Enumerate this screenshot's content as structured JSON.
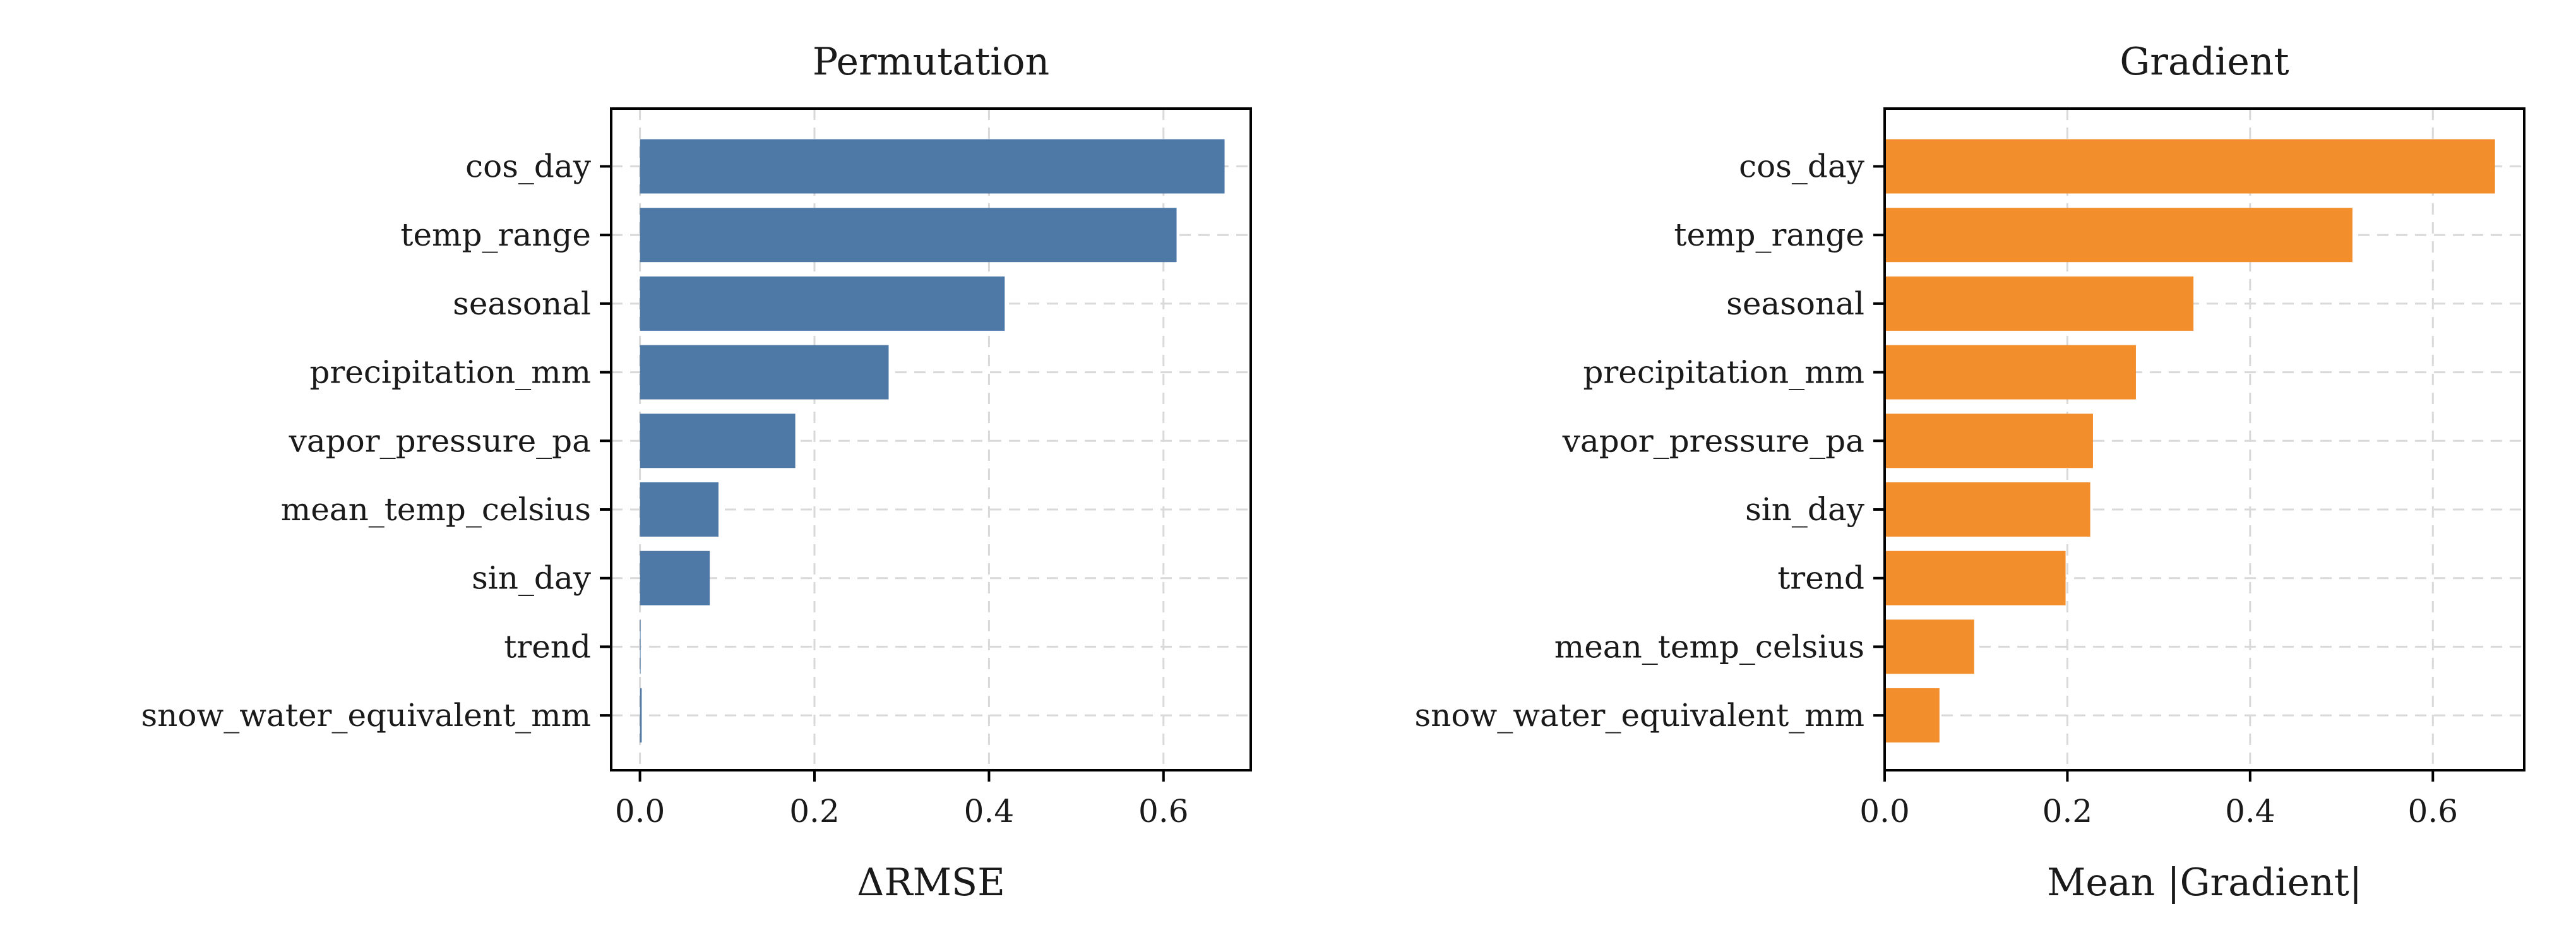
{
  "chart_data": [
    {
      "type": "bar",
      "orientation": "horizontal",
      "title": "Permutation",
      "xlabel": "ΔRMSE",
      "ylabel": "",
      "categories": [
        "cos_day",
        "temp_range",
        "seasonal",
        "precipitation_mm",
        "vapor_pressure_pa",
        "mean_temp_celsius",
        "sin_day",
        "trend",
        "snow_water_equivalent_mm"
      ],
      "values": [
        0.67,
        0.615,
        0.418,
        0.285,
        0.178,
        0.09,
        0.08,
        0.0,
        0.002
      ],
      "xlim": [
        -0.033,
        0.7
      ],
      "xticks": [
        0.0,
        0.2,
        0.4,
        0.6
      ],
      "xtick_labels": [
        "0.0",
        "0.2",
        "0.4",
        "0.6"
      ],
      "grid": true,
      "color": "#4e79a7"
    },
    {
      "type": "bar",
      "orientation": "horizontal",
      "title": "Gradient",
      "xlabel": "Mean |Gradient|",
      "ylabel": "",
      "categories": [
        "cos_day",
        "temp_range",
        "seasonal",
        "precipitation_mm",
        "vapor_pressure_pa",
        "sin_day",
        "trend",
        "mean_temp_celsius",
        "snow_water_equivalent_mm"
      ],
      "values": [
        0.668,
        0.512,
        0.338,
        0.275,
        0.228,
        0.225,
        0.198,
        0.098,
        0.06
      ],
      "xlim": [
        0.0,
        0.7
      ],
      "xticks": [
        0.0,
        0.2,
        0.4,
        0.6
      ],
      "xtick_labels": [
        "0.0",
        "0.2",
        "0.4",
        "0.6"
      ],
      "grid": true,
      "color": "#f28e2b"
    }
  ]
}
